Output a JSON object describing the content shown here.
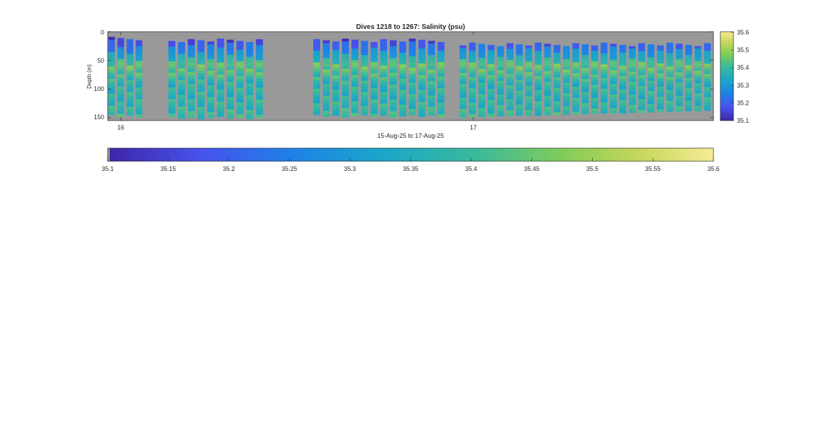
{
  "chart_data": {
    "type": "heatmap",
    "title": "Dives 1218 to 1267: Salinity (psu)",
    "xlabel": "15-Aug-25 to 17-Aug-25",
    "ylabel": "Depth (m)",
    "x_ticks": [
      "16",
      "17"
    ],
    "y_ticks": [
      "0",
      "50",
      "100",
      "150"
    ],
    "ylim": [
      0,
      155
    ],
    "y_reversed": true,
    "colormap": "parula",
    "clim": [
      35.1,
      35.6
    ],
    "missing_color": "#999999",
    "grid": false,
    "colorbar_side_ticks": [
      "35.6",
      "35.5",
      "35.4",
      "35.3",
      "35.2",
      "35.1"
    ],
    "colorbar_bottom_ticks": [
      "35.1",
      "35.15",
      "35.2",
      "35.25",
      "35.3",
      "35.35",
      "35.4",
      "35.45",
      "35.5",
      "35.55",
      "35.6"
    ],
    "profile_groups": [
      {
        "count": 4,
        "shallow_start": 12,
        "bottom_depth": 147
      },
      {
        "count": 10,
        "shallow_start": 15,
        "bottom_depth": 150
      },
      {
        "count": 14,
        "shallow_start": 15,
        "bottom_depth": 147
      },
      {
        "count": 27,
        "shallow_start": 22,
        "bottom_depth": 137
      }
    ],
    "salinity_profile": [
      {
        "depth": 15,
        "salinity": 35.16
      },
      {
        "depth": 30,
        "salinity": 35.24
      },
      {
        "depth": 45,
        "salinity": 35.34
      },
      {
        "depth": 58,
        "salinity": 35.44
      },
      {
        "depth": 70,
        "salinity": 35.42
      },
      {
        "depth": 90,
        "salinity": 35.37
      },
      {
        "depth": 120,
        "salinity": 35.37
      },
      {
        "depth": 150,
        "salinity": 35.39
      }
    ]
  }
}
